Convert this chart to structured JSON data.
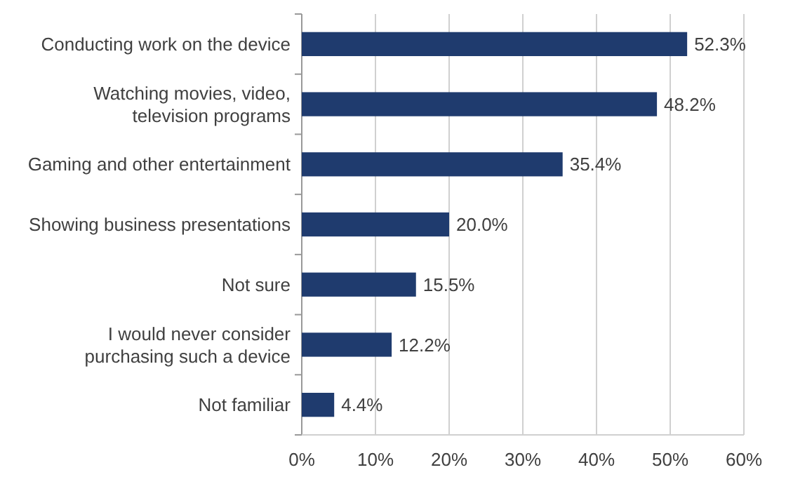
{
  "chart_data": {
    "type": "bar",
    "orientation": "horizontal",
    "categories": [
      "Conducting work on the device",
      "Watching movies, video, television programs",
      "Gaming and other entertainment",
      "Showing business presentations",
      "Not sure",
      "I would never consider purchasing such a device",
      "Not familiar"
    ],
    "values": [
      52.3,
      48.2,
      35.4,
      20.0,
      15.5,
      12.2,
      4.4
    ],
    "value_labels": [
      "52.3%",
      "48.2%",
      "35.4%",
      "20.0%",
      "15.5%",
      "12.2%",
      "4.4%"
    ],
    "color": "#1f3b6e",
    "xlim": [
      0,
      60
    ],
    "xticks": [
      {
        "value": 0,
        "label": "0%"
      },
      {
        "value": 10,
        "label": "10%"
      },
      {
        "value": 20,
        "label": "20%"
      },
      {
        "value": 30,
        "label": "30%"
      },
      {
        "value": 40,
        "label": "40%"
      },
      {
        "value": 50,
        "label": "50%"
      },
      {
        "value": 60,
        "label": "60%"
      }
    ],
    "grid": "x"
  }
}
